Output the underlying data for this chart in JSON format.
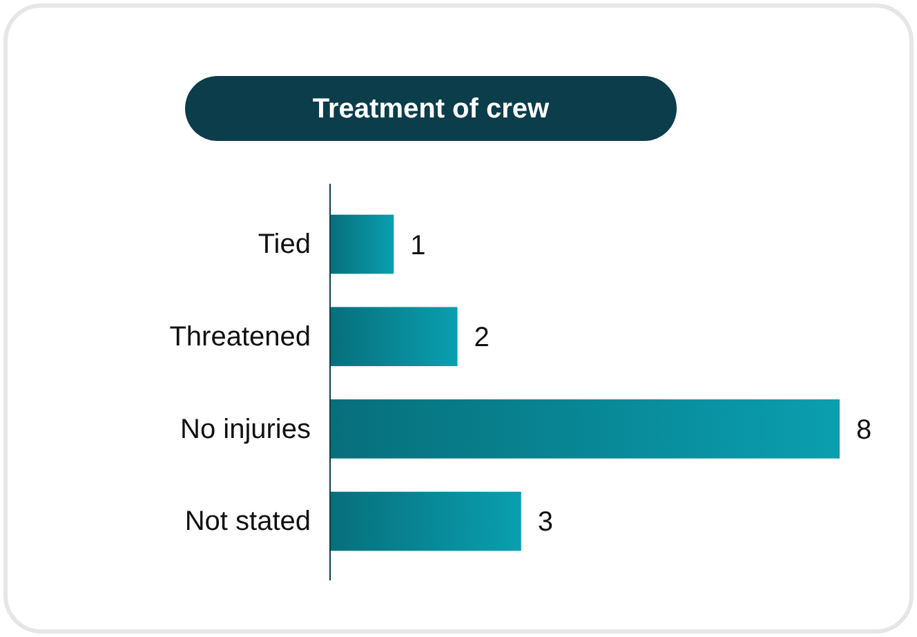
{
  "chart_data": {
    "type": "bar",
    "orientation": "horizontal",
    "title": "Treatment of crew",
    "categories": [
      "Tied",
      "Threatened",
      "No injuries",
      "Not stated"
    ],
    "values": [
      1,
      2,
      8,
      3
    ],
    "color": "#0a9fb0",
    "data_labels": true
  }
}
